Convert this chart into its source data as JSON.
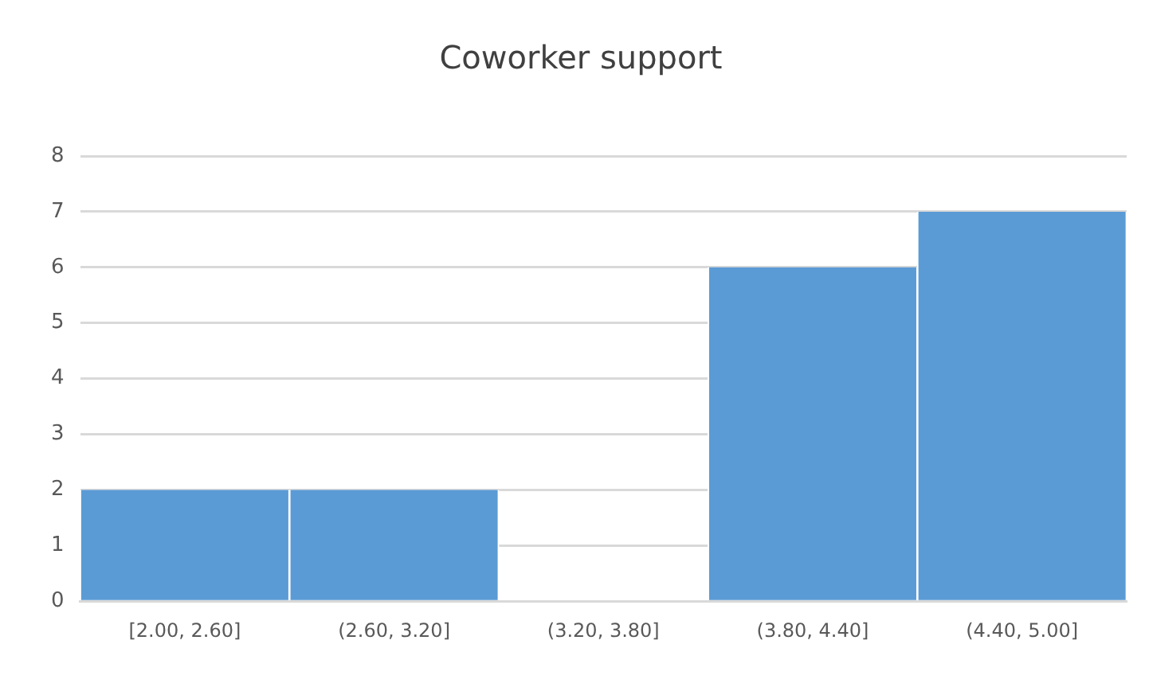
{
  "chart_data": {
    "type": "bar",
    "title": "Coworker support",
    "categories": [
      "[2.00, 2.60]",
      "(2.60, 3.20]",
      "(3.20, 3.80]",
      "(3.80, 4.40]",
      "(4.40, 5.00]"
    ],
    "values": [
      2,
      2,
      0,
      6,
      7
    ],
    "color": "#5b9bd5",
    "ylim": [
      0,
      8
    ],
    "yticks": [
      0,
      1,
      2,
      3,
      4,
      5,
      6,
      7,
      8
    ],
    "grid": "y"
  }
}
